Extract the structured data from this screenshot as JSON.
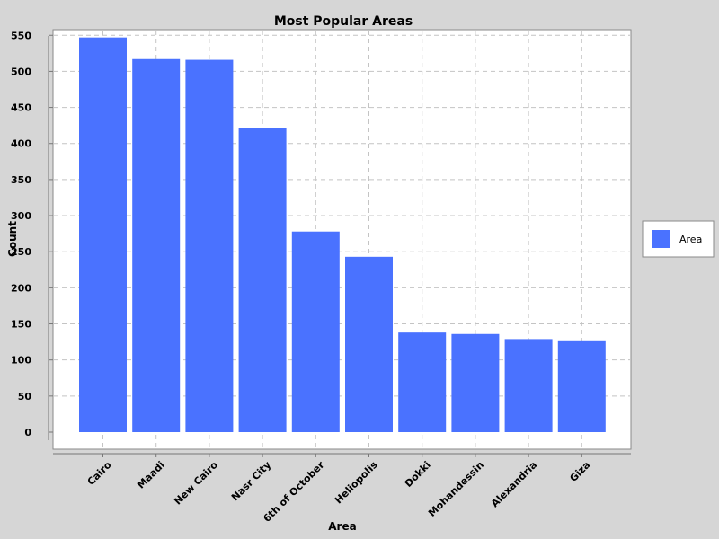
{
  "chart_data": {
    "type": "bar",
    "title": "Most Popular Areas",
    "xlabel": "Area",
    "ylabel": "Count",
    "categories": [
      "Cairo",
      "Maadi",
      "New Cairo",
      "Nasr City",
      "6th of October",
      "Heliopolis",
      "Dokki",
      "Mohandessin",
      "Alexandria",
      "Giza"
    ],
    "series": [
      {
        "name": "Area",
        "values": [
          547,
          517,
          516,
          422,
          278,
          243,
          138,
          136,
          129,
          126
        ],
        "color": "#4a72ff"
      }
    ],
    "ylim": [
      0,
      570
    ],
    "yticks": [
      0,
      50,
      100,
      150,
      200,
      250,
      300,
      350,
      400,
      450,
      500,
      550
    ],
    "grid": true,
    "legend_position": "right"
  }
}
